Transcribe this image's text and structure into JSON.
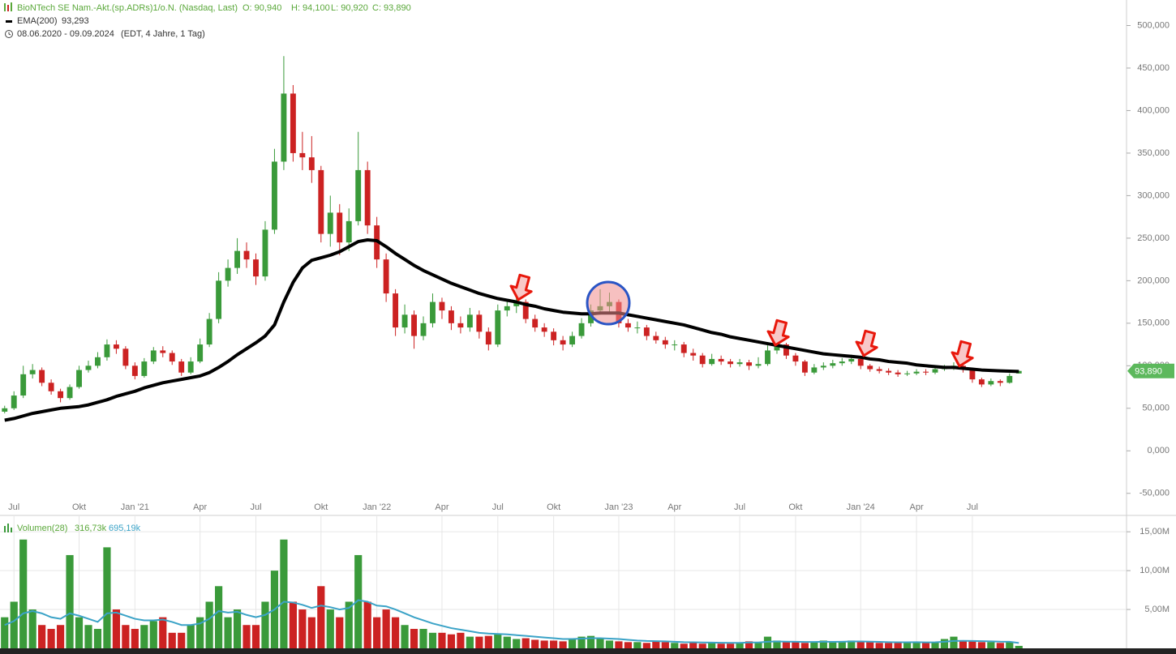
{
  "chart_data": [
    {
      "type": "candlestick",
      "title": "BioNTech SE Nam.-Akt.(sp.ADRs)1/o.N. (Nasdaq, Last)",
      "ohlc_labels": [
        "O: 90,940",
        "H: 94,100",
        "L: 90,920",
        "C: 93,890"
      ],
      "date_range": "08.06.2020 - 09.09.2024",
      "range_note": "(EDT, 4 Jahre, 1 Tag)",
      "up_color": "#3a9a3a",
      "down_color": "#cc2222",
      "categories": [
        null,
        "Jul",
        null,
        null,
        null,
        null,
        null,
        null,
        "Okt",
        null,
        null,
        null,
        null,
        null,
        "Jan '21",
        null,
        null,
        null,
        null,
        null,
        null,
        "Apr",
        null,
        null,
        null,
        null,
        null,
        "Jul",
        null,
        null,
        null,
        null,
        null,
        null,
        "Okt",
        null,
        null,
        null,
        null,
        null,
        "Jan '22",
        null,
        null,
        null,
        null,
        null,
        null,
        "Apr",
        null,
        null,
        null,
        null,
        null,
        "Jul",
        null,
        null,
        null,
        null,
        null,
        "Okt",
        null,
        null,
        null,
        null,
        null,
        null,
        "Jan '23",
        null,
        null,
        null,
        null,
        null,
        "Apr",
        null,
        null,
        null,
        null,
        null,
        null,
        "Jul",
        null,
        null,
        null,
        null,
        null,
        "Okt",
        null,
        null,
        null,
        null,
        null,
        null,
        "Jan '24",
        null,
        null,
        null,
        null,
        null,
        "Apr",
        null,
        null,
        null,
        null,
        null,
        "Jul",
        null,
        null,
        null,
        null,
        null
      ],
      "open": [
        46,
        50,
        65,
        90,
        95,
        80,
        70,
        62,
        75,
        95,
        100,
        110,
        125,
        120,
        100,
        88,
        105,
        118,
        115,
        105,
        92,
        105,
        125,
        155,
        200,
        215,
        235,
        225,
        205,
        260,
        340,
        420,
        350,
        345,
        330,
        255,
        280,
        245,
        270,
        330,
        265,
        225,
        185,
        145,
        160,
        135,
        150,
        175,
        165,
        150,
        145,
        160,
        140,
        125,
        165,
        170,
        175,
        155,
        145,
        140,
        130,
        125,
        135,
        150,
        165,
        170,
        175,
        150,
        145,
        145,
        135,
        130,
        125,
        125,
        115,
        112,
        102,
        108,
        105,
        102,
        104,
        100,
        102,
        118,
        125,
        112,
        105,
        92,
        98,
        100,
        103,
        105,
        108,
        100,
        96,
        94,
        92,
        90,
        91,
        93,
        92,
        96,
        98,
        100,
        96,
        84,
        78,
        82,
        80,
        90.94
      ],
      "high": [
        53,
        70,
        100,
        102,
        98,
        84,
        73,
        78,
        100,
        106,
        116,
        131,
        130,
        123,
        104,
        109,
        122,
        123,
        118,
        108,
        110,
        132,
        162,
        210,
        225,
        250,
        245,
        232,
        270,
        355,
        464,
        430,
        375,
        370,
        335,
        300,
        290,
        285,
        375,
        340,
        275,
        232,
        190,
        172,
        165,
        158,
        185,
        180,
        170,
        158,
        168,
        165,
        145,
        172,
        178,
        182,
        178,
        160,
        150,
        144,
        135,
        140,
        156,
        172,
        190,
        186,
        178,
        155,
        152,
        148,
        140,
        134,
        130,
        128,
        120,
        115,
        114,
        112,
        108,
        108,
        107,
        110,
        124,
        132,
        127,
        115,
        107,
        102,
        104,
        107,
        109,
        113,
        110,
        102,
        99,
        97,
        95,
        94,
        96,
        96,
        99,
        101,
        104,
        102,
        97,
        86,
        85,
        84,
        91,
        94.1
      ],
      "low": [
        44,
        48,
        62,
        85,
        76,
        66,
        57,
        60,
        73,
        92,
        97,
        106,
        114,
        96,
        84,
        86,
        102,
        110,
        101,
        88,
        90,
        103,
        122,
        150,
        193,
        208,
        215,
        195,
        200,
        255,
        330,
        340,
        330,
        315,
        245,
        240,
        230,
        235,
        265,
        255,
        215,
        175,
        135,
        138,
        120,
        130,
        145,
        155,
        142,
        138,
        140,
        132,
        118,
        122,
        158,
        162,
        150,
        140,
        134,
        124,
        118,
        122,
        132,
        146,
        160,
        162,
        145,
        140,
        138,
        130,
        126,
        120,
        118,
        110,
        106,
        98,
        100,
        101,
        98,
        99,
        95,
        97,
        100,
        114,
        108,
        100,
        88,
        90,
        95,
        97,
        100,
        102,
        96,
        93,
        91,
        89,
        87,
        88,
        89,
        89,
        90,
        94,
        95,
        92,
        80,
        75,
        76,
        76,
        79,
        90.92
      ],
      "close": [
        50,
        65,
        90,
        95,
        80,
        70,
        62,
        75,
        95,
        100,
        110,
        125,
        120,
        100,
        88,
        105,
        118,
        115,
        105,
        92,
        105,
        125,
        155,
        200,
        215,
        235,
        225,
        205,
        260,
        340,
        420,
        350,
        345,
        330,
        255,
        280,
        245,
        270,
        330,
        265,
        225,
        185,
        145,
        160,
        135,
        150,
        175,
        165,
        150,
        145,
        160,
        140,
        125,
        165,
        170,
        175,
        155,
        145,
        140,
        130,
        125,
        135,
        150,
        165,
        170,
        175,
        150,
        145,
        145,
        135,
        130,
        125,
        125,
        115,
        112,
        102,
        108,
        105,
        102,
        104,
        100,
        102,
        118,
        125,
        112,
        105,
        92,
        98,
        100,
        103,
        105,
        108,
        100,
        96,
        94,
        92,
        90,
        91,
        93,
        92,
        96,
        98,
        100,
        96,
        84,
        78,
        82,
        80,
        88,
        93.89
      ],
      "last_label": "93,890",
      "last_color": "#5cb85c",
      "lines": [
        {
          "name": "EMA(200)",
          "color": "#000000",
          "last_label": "93,293",
          "values": [
            36,
            38,
            41,
            44,
            46,
            48,
            50,
            51,
            52,
            54,
            57,
            60,
            64,
            67,
            70,
            74,
            77,
            80,
            82,
            84,
            86,
            88,
            92,
            98,
            105,
            113,
            120,
            127,
            135,
            148,
            175,
            198,
            215,
            224,
            227,
            230,
            234,
            240,
            246,
            248,
            247,
            240,
            232,
            225,
            218,
            212,
            207,
            202,
            197,
            193,
            189,
            185,
            182,
            179,
            177,
            175,
            172,
            170,
            167,
            165,
            163,
            162,
            161,
            161,
            162,
            162,
            162,
            160,
            158,
            156,
            154,
            152,
            150,
            148,
            145,
            142,
            139,
            137,
            134,
            132,
            130,
            128,
            126,
            124,
            122,
            120,
            118,
            116,
            114,
            113,
            112,
            111,
            110,
            108,
            107,
            105,
            104,
            103,
            101,
            100,
            99,
            98,
            98,
            97,
            96,
            95,
            94.5,
            94,
            93.6,
            93.293
          ]
        }
      ],
      "ylim": [
        -75,
        530
      ],
      "yticks": [
        {
          "value": -50,
          "label": "-50,000"
        },
        {
          "value": 0,
          "label": "0,000"
        },
        {
          "value": 50,
          "label": "50,000"
        },
        {
          "value": 100,
          "label": "100,000"
        },
        {
          "value": 150,
          "label": "150,000"
        },
        {
          "value": 200,
          "label": "200,000"
        },
        {
          "value": 250,
          "label": "250,000"
        },
        {
          "value": 300,
          "label": "300,000"
        },
        {
          "value": 350,
          "label": "350,000"
        },
        {
          "value": 400,
          "label": "400,000"
        },
        {
          "value": 450,
          "label": "450,000"
        },
        {
          "value": 500,
          "label": "500,000"
        }
      ],
      "grid": false
    },
    {
      "type": "bar",
      "title": "Volumen(28)",
      "current_label": "316,73k",
      "values": [
        4,
        6,
        14,
        5,
        3,
        2.5,
        3,
        12,
        4,
        3,
        2.5,
        13,
        5,
        3,
        2.5,
        3,
        3.5,
        4,
        2,
        2,
        3,
        4,
        6,
        8,
        4,
        5,
        3,
        3,
        6,
        10,
        14,
        6,
        5,
        4,
        8,
        5,
        4,
        6,
        12,
        6,
        4,
        5,
        4,
        3,
        2.5,
        2.5,
        2,
        2,
        1.8,
        2,
        1.5,
        1.5,
        1.6,
        1.8,
        1.5,
        1.2,
        1.3,
        1.1,
        1,
        1,
        0.9,
        1.2,
        1.5,
        1.6,
        1.2,
        1,
        0.9,
        0.8,
        0.8,
        0.7,
        0.9,
        0.8,
        0.7,
        0.6,
        0.7,
        0.6,
        0.7,
        0.6,
        0.6,
        0.7,
        0.9,
        0.8,
        1.5,
        1,
        0.8,
        0.8,
        0.7,
        0.8,
        1,
        0.8,
        0.9,
        1,
        0.9,
        0.8,
        0.7,
        0.7,
        0.7,
        0.8,
        0.8,
        0.7,
        0.8,
        1.2,
        1.5,
        1,
        0.9,
        0.8,
        0.8,
        0.7,
        0.8,
        0.31673
      ],
      "lines": [
        {
          "color": "#3ba3c7",
          "last_label": "695,19k",
          "values": [
            3,
            3.5,
            4.5,
            4.8,
            4.5,
            4,
            3.8,
            4.5,
            4.2,
            3.8,
            3.4,
            4.5,
            4.6,
            4.2,
            3.8,
            3.6,
            3.6,
            3.7,
            3.4,
            3,
            3,
            3.2,
            3.8,
            4.8,
            4.6,
            4.7,
            4.3,
            4,
            4.3,
            5,
            6,
            5.9,
            5.6,
            5.2,
            5.5,
            5.3,
            5,
            5.2,
            6.2,
            6,
            5.5,
            5.4,
            5,
            4.5,
            4,
            3.6,
            3.2,
            2.9,
            2.6,
            2.4,
            2.2,
            2,
            1.9,
            1.85,
            1.8,
            1.7,
            1.6,
            1.5,
            1.4,
            1.3,
            1.2,
            1.2,
            1.25,
            1.3,
            1.3,
            1.25,
            1.2,
            1.1,
            1,
            0.95,
            0.93,
            0.9,
            0.85,
            0.8,
            0.78,
            0.75,
            0.74,
            0.72,
            0.7,
            0.7,
            0.75,
            0.76,
            0.85,
            0.88,
            0.86,
            0.85,
            0.82,
            0.82,
            0.85,
            0.84,
            0.85,
            0.88,
            0.88,
            0.86,
            0.83,
            0.8,
            0.78,
            0.78,
            0.79,
            0.77,
            0.78,
            0.85,
            0.95,
            0.96,
            0.95,
            0.92,
            0.9,
            0.86,
            0.85,
            0.69519
          ]
        }
      ],
      "ylim": [
        0,
        17
      ],
      "yticks": [
        {
          "value": 5,
          "label": "5,00M"
        },
        {
          "value": 10,
          "label": "10,00M"
        },
        {
          "value": 15,
          "label": "15,00M"
        }
      ],
      "grid": true
    }
  ]
}
